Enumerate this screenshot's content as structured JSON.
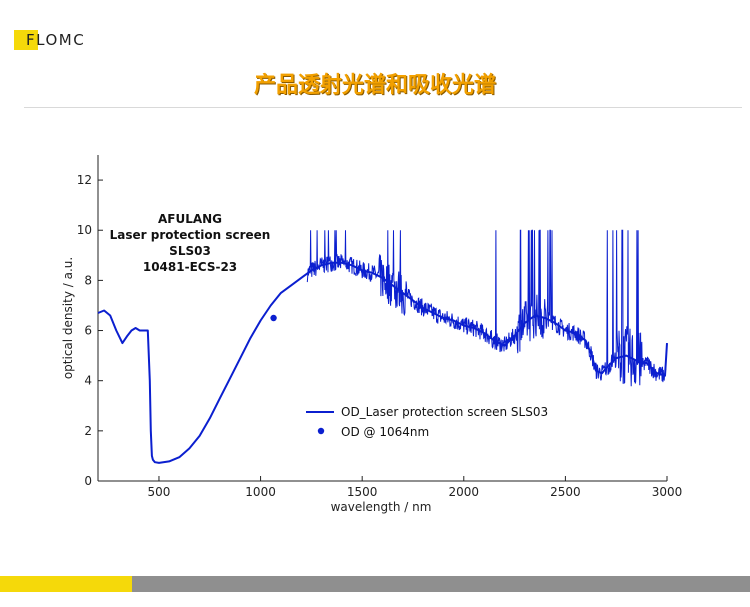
{
  "brand": "FLOMC",
  "title": "产品透射光谱和吸收光谱",
  "colors": {
    "accent": "#f2a000",
    "brand_yellow": "#f5d90a",
    "footer_gray": "#8f8f8f",
    "series": "#0b1fcf"
  },
  "chart_data": {
    "type": "line",
    "xlabel": "wavelength / nm",
    "ylabel": "optical density / a.u.",
    "xlim": [
      200,
      3000
    ],
    "ylim": [
      0,
      13
    ],
    "xticks": [
      500,
      1000,
      1500,
      2000,
      2500,
      3000
    ],
    "yticks": [
      0,
      2,
      4,
      6,
      8,
      10,
      12
    ],
    "annotation": [
      "AFULANG",
      "Laser protection screen",
      "SLS03",
      "10481-ECS-23"
    ],
    "legend_placement": "lower-center",
    "grid": false,
    "series": [
      {
        "name": "OD_Laser protection screen SLS03",
        "style": "line",
        "x": [
          200,
          230,
          260,
          290,
          320,
          345,
          365,
          385,
          405,
          425,
          445,
          455,
          460,
          465,
          470,
          480,
          500,
          550,
          600,
          650,
          700,
          750,
          800,
          850,
          900,
          950,
          1000,
          1050,
          1100,
          1150,
          1200,
          1250,
          1300,
          1350,
          1400,
          1450,
          1500,
          1550,
          1600,
          1650,
          1700,
          1750,
          1800,
          1850,
          1900,
          1950,
          2000,
          2050,
          2100,
          2150,
          2200,
          2250,
          2300,
          2350,
          2400,
          2450,
          2500,
          2550,
          2600,
          2630,
          2650,
          2680,
          2700,
          2750,
          2800,
          2850,
          2900,
          2950,
          2990,
          3000
        ],
        "values": [
          6.7,
          6.8,
          6.6,
          6.0,
          5.5,
          5.8,
          6.0,
          6.1,
          6.0,
          6.0,
          6.0,
          4.0,
          2.0,
          1.0,
          0.85,
          0.75,
          0.72,
          0.78,
          0.95,
          1.3,
          1.8,
          2.5,
          3.3,
          4.1,
          4.9,
          5.7,
          6.4,
          7.0,
          7.5,
          7.8,
          8.1,
          8.4,
          8.6,
          8.7,
          8.7,
          8.6,
          8.4,
          8.3,
          8.1,
          7.8,
          7.5,
          7.2,
          6.9,
          6.7,
          6.5,
          6.4,
          6.2,
          6.1,
          5.9,
          5.6,
          5.4,
          5.8,
          6.3,
          6.6,
          6.5,
          6.3,
          6.0,
          5.9,
          5.6,
          5.0,
          4.4,
          4.3,
          4.5,
          4.9,
          5.0,
          4.8,
          4.7,
          4.3,
          4.2,
          5.5
        ]
      },
      {
        "name": "OD @ 1064nm",
        "style": "marker",
        "x": [
          1064
        ],
        "values": [
          6.5
        ]
      }
    ]
  }
}
